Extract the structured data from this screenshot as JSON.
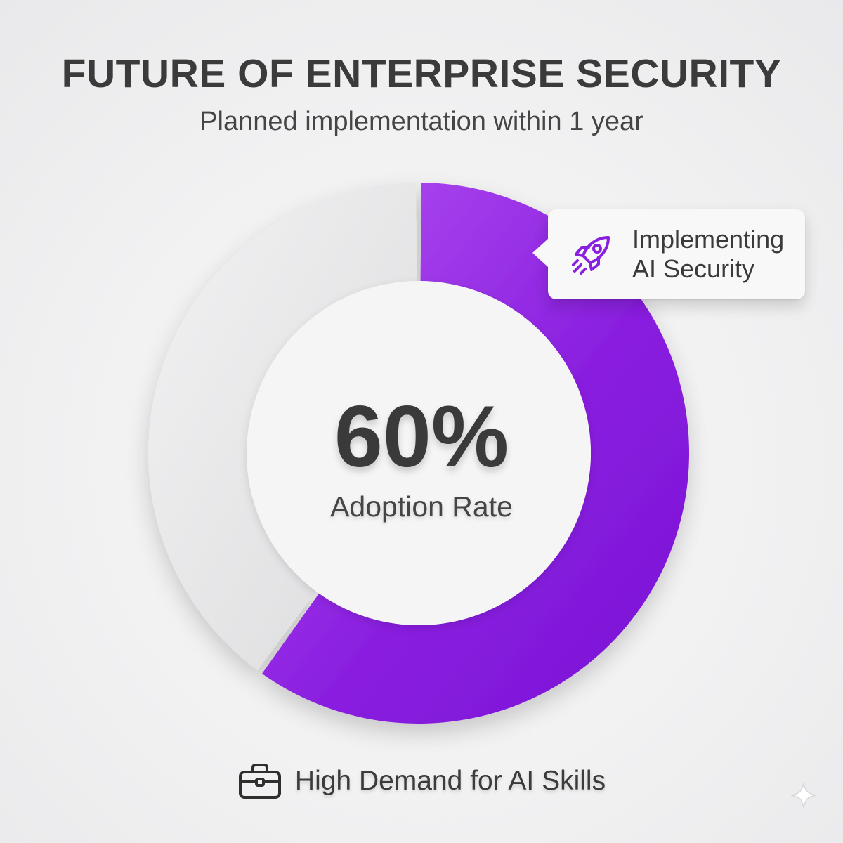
{
  "chart_data": {
    "type": "pie",
    "variant": "donut",
    "title": "FUTURE OF ENTERPRISE SECURITY",
    "subtitle": "Planned implementation within 1 year",
    "slices": [
      {
        "name": "Implementing AI Security",
        "value": 60,
        "color": "#8a1fe0"
      },
      {
        "name": "",
        "value": 40,
        "color": "#e6e6e8"
      }
    ],
    "center_value": "60%",
    "center_label": "Adoption Rate",
    "annotations": [
      {
        "text_line1": "Implementing",
        "text_line2": "AI Security",
        "icon": "rocket-icon"
      }
    ],
    "footer": {
      "text": "High Demand for AI Skills",
      "icon": "briefcase-icon"
    }
  },
  "colors": {
    "accent": "#8a1fe0",
    "accent_light": "#b75af5",
    "remainder": "#e6e6e8",
    "text": "#3a3a3a"
  },
  "decoration": {
    "corner_icon": "sparkle-icon"
  }
}
